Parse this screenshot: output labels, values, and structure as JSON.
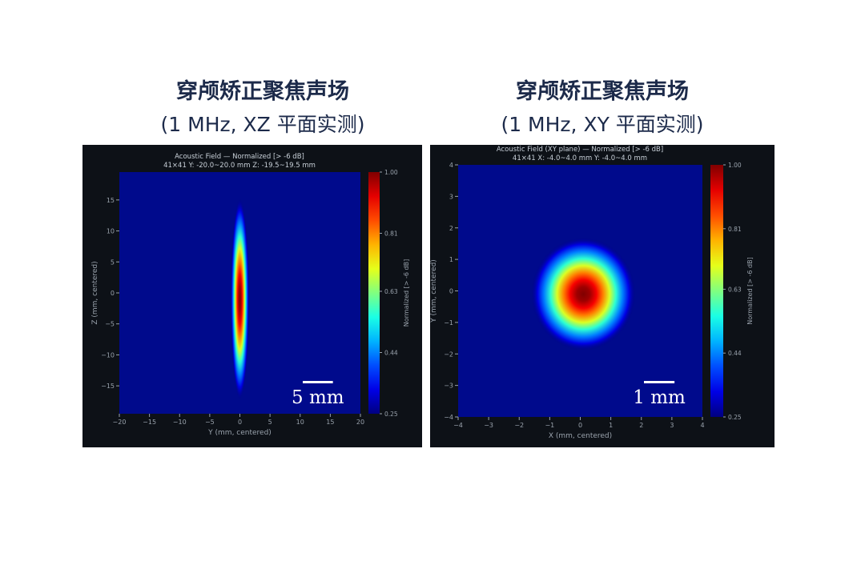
{
  "panels": [
    {
      "title": "穿颅矫正聚焦声场",
      "subtitle": "(1 MHz, XZ 平面实测)"
    },
    {
      "title": "穿颅矫正聚焦声场",
      "subtitle": "(1 MHz, XY 平面实测)"
    }
  ],
  "chart_data": [
    {
      "type": "heatmap",
      "title": "Acoustic Field — Normalized  [> -6 dB]",
      "subtitle": "41×41  Y: -20.0~20.0 mm  Z: -19.5~19.5 mm",
      "xlabel": "Y (mm, centered)",
      "ylabel": "Z (mm, centered)",
      "xlim": [
        -20,
        20
      ],
      "ylim": [
        -19.5,
        19.5
      ],
      "xticks": [
        -20,
        -15,
        -10,
        -5,
        0,
        5,
        10,
        15,
        20
      ],
      "yticks": [
        -15,
        -10,
        -5,
        0,
        5,
        10,
        15
      ],
      "colorbar": {
        "label": "Normalized  [> -6 dB]",
        "ticks": [
          "0.25",
          "0.44",
          "0.63",
          "0.81",
          "1.00"
        ],
        "range": [
          0.25,
          1.0
        ],
        "colormap": "jet"
      },
      "focus": {
        "center": [
          0,
          -1
        ],
        "sigma_x": 0.9,
        "sigma_y": 9.5,
        "peak": 1.0
      },
      "scale_bar": {
        "label": "5 mm",
        "length": 5
      }
    },
    {
      "type": "heatmap",
      "title": "Acoustic Field (XY plane) — Normalized  [> -6 dB]",
      "subtitle": "41×41  X: -4.0~4.0 mm  Y: -4.0~4.0 mm",
      "xlabel": "X (mm, centered)",
      "ylabel": "Y (mm, centered)",
      "xlim": [
        -4,
        4
      ],
      "ylim": [
        -4,
        4
      ],
      "xticks": [
        -4,
        -3,
        -2,
        -1,
        0,
        1,
        2,
        3,
        4
      ],
      "yticks": [
        -4,
        -3,
        -2,
        -1,
        0,
        1,
        2,
        3,
        4
      ],
      "colorbar": {
        "label": "Normalized  [> -6 dB]",
        "ticks": [
          "0.25",
          "0.44",
          "0.63",
          "0.81",
          "1.00"
        ],
        "range": [
          0.25,
          1.0
        ],
        "colormap": "jet"
      },
      "focus": {
        "center": [
          0.1,
          -0.1
        ],
        "sigma_x": 1.0,
        "sigma_y": 1.05,
        "peak": 1.0
      },
      "scale_bar": {
        "label": "1 mm",
        "length": 1
      }
    }
  ],
  "colors": {
    "figure_bg": "#0d1117",
    "field_bg": "#000a8c",
    "axis_text": "#9aa3ad",
    "title_text": "#c9d1d9",
    "heading": "#1c2a4a",
    "scale_bar": "#ffffff"
  }
}
